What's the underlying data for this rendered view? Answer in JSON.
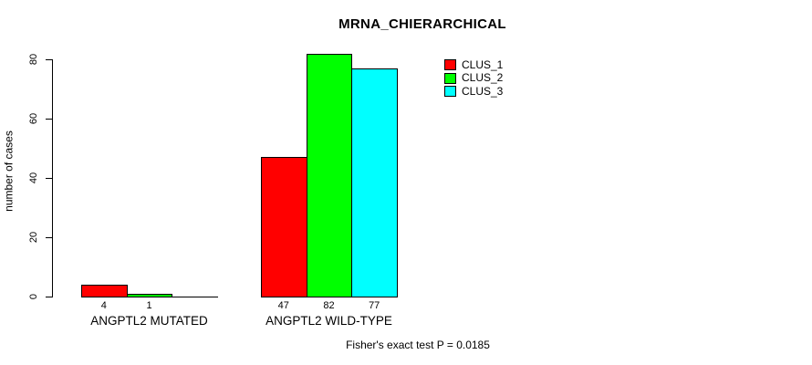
{
  "title": "MRNA_CHIERARCHICAL",
  "y_axis_label": "number of cases",
  "footer_note": "Fisher's exact test P = 0.0185",
  "chart_data": {
    "type": "bar",
    "title": "MRNA_CHIERARCHICAL",
    "xlabel": "",
    "ylabel": "number of cases",
    "categories": [
      "ANGPTL2 MUTATED",
      "ANGPTL2 WILD-TYPE"
    ],
    "series": [
      {
        "name": "CLUS_1",
        "color": "#ff0000",
        "values": [
          4,
          47
        ]
      },
      {
        "name": "CLUS_2",
        "color": "#00ff00",
        "values": [
          1,
          82
        ]
      },
      {
        "name": "CLUS_3",
        "color": "#00ffff",
        "values": [
          0,
          77
        ]
      }
    ],
    "bar_value_labels": [
      [
        "4",
        "1",
        ""
      ],
      [
        "47",
        "82",
        "77"
      ]
    ],
    "yticks": [
      0,
      20,
      40,
      60,
      80
    ],
    "ylim": [
      0,
      82
    ],
    "grid": false,
    "bar_border_color": "#000000",
    "legend_position": "top-right",
    "legend_items": [
      "CLUS_1",
      "CLUS_2",
      "CLUS_3"
    ],
    "annotation": "Fisher's exact test P = 0.0185"
  }
}
